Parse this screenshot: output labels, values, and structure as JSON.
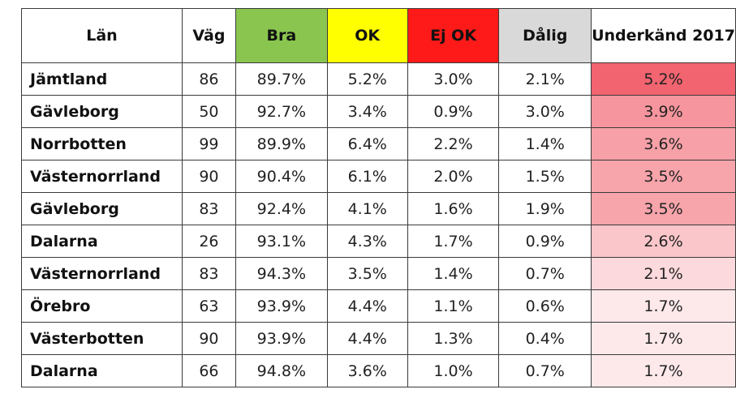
{
  "chart_data": {
    "type": "table",
    "columns": [
      {
        "label": "Län",
        "bg": "#ffffff"
      },
      {
        "label": "Väg",
        "bg": "#ffffff"
      },
      {
        "label": "Bra",
        "bg": "#8ac64f"
      },
      {
        "label": "OK",
        "bg": "#ffff00"
      },
      {
        "label": "Ej OK",
        "bg": "#ff1a1a"
      },
      {
        "label": "Dålig",
        "bg": "#d9d9d9"
      },
      {
        "label": "Underkänd 2017",
        "bg": "#ffffff"
      }
    ],
    "heat_colors": {
      "low": "#fde8ea",
      "high": "#f2646f"
    },
    "rows": [
      {
        "lan": "Jämtland",
        "vag": "86",
        "bra": "89.7%",
        "ok": "5.2%",
        "ejok": "3.0%",
        "dalig": "2.1%",
        "underkand": "5.2%"
      },
      {
        "lan": "Gävleborg",
        "vag": "50",
        "bra": "92.7%",
        "ok": "3.4%",
        "ejok": "0.9%",
        "dalig": "3.0%",
        "underkand": "3.9%"
      },
      {
        "lan": "Norrbotten",
        "vag": "99",
        "bra": "89.9%",
        "ok": "6.4%",
        "ejok": "2.2%",
        "dalig": "1.4%",
        "underkand": "3.6%"
      },
      {
        "lan": "Västernorrland",
        "vag": "90",
        "bra": "90.4%",
        "ok": "6.1%",
        "ejok": "2.0%",
        "dalig": "1.5%",
        "underkand": "3.5%"
      },
      {
        "lan": "Gävleborg",
        "vag": "83",
        "bra": "92.4%",
        "ok": "4.1%",
        "ejok": "1.6%",
        "dalig": "1.9%",
        "underkand": "3.5%"
      },
      {
        "lan": "Dalarna",
        "vag": "26",
        "bra": "93.1%",
        "ok": "4.3%",
        "ejok": "1.7%",
        "dalig": "0.9%",
        "underkand": "2.6%"
      },
      {
        "lan": "Västernorrland",
        "vag": "83",
        "bra": "94.3%",
        "ok": "3.5%",
        "ejok": "1.4%",
        "dalig": "0.7%",
        "underkand": "2.1%"
      },
      {
        "lan": "Örebro",
        "vag": "63",
        "bra": "93.9%",
        "ok": "4.4%",
        "ejok": "1.1%",
        "dalig": "0.6%",
        "underkand": "1.7%"
      },
      {
        "lan": "Västerbotten",
        "vag": "90",
        "bra": "93.9%",
        "ok": "4.4%",
        "ejok": "1.3%",
        "dalig": "0.4%",
        "underkand": "1.7%"
      },
      {
        "lan": "Dalarna",
        "vag": "66",
        "bra": "94.8%",
        "ok": "3.6%",
        "ejok": "1.0%",
        "dalig": "0.7%",
        "underkand": "1.7%"
      }
    ]
  }
}
